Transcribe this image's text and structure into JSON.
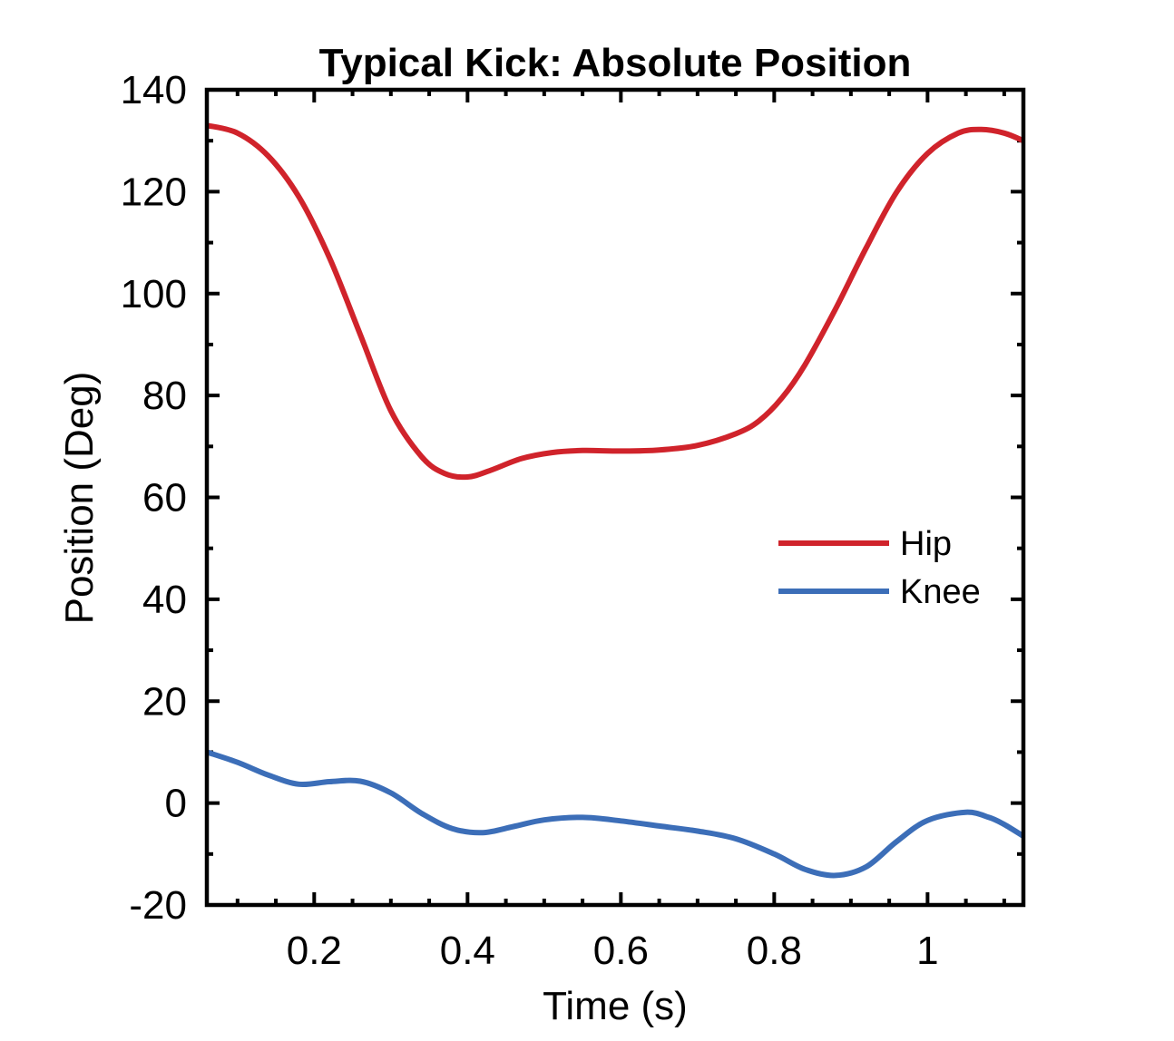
{
  "chart_data": {
    "type": "line",
    "title": "Typical Kick: Absolute Position",
    "xlabel": "Time (s)",
    "ylabel": "Position (Deg)",
    "xlim": [
      0.06,
      1.125
    ],
    "ylim": [
      -20,
      140
    ],
    "xticks": [
      0.2,
      0.4,
      0.6,
      0.8,
      1
    ],
    "xtick_labels": [
      "0.2",
      "0.4",
      "0.6",
      "0.8",
      "1"
    ],
    "yticks": [
      -20,
      0,
      20,
      40,
      60,
      80,
      100,
      120,
      140
    ],
    "ytick_labels": [
      "-20",
      "0",
      "20",
      "40",
      "60",
      "80",
      "100",
      "120",
      "140"
    ],
    "grid": false,
    "legend_position": "center-right",
    "series": [
      {
        "name": "Hip",
        "color": "#d0232b",
        "x": [
          0.06,
          0.1,
          0.14,
          0.18,
          0.22,
          0.26,
          0.3,
          0.34,
          0.37,
          0.4,
          0.43,
          0.47,
          0.51,
          0.55,
          0.6,
          0.65,
          0.7,
          0.75,
          0.78,
          0.81,
          0.84,
          0.88,
          0.92,
          0.96,
          1.0,
          1.04,
          1.07,
          1.1,
          1.125
        ],
        "y": [
          133,
          131.5,
          127,
          119,
          107,
          92,
          77,
          68,
          64.7,
          64,
          65.3,
          67.6,
          68.8,
          69.2,
          69.1,
          69.3,
          70.2,
          72.5,
          75,
          79.5,
          86,
          97,
          109,
          120,
          127.5,
          131.5,
          132.2,
          131.5,
          130
        ]
      },
      {
        "name": "Knee",
        "color": "#3c6eb8",
        "x": [
          0.06,
          0.1,
          0.14,
          0.18,
          0.22,
          0.26,
          0.3,
          0.34,
          0.38,
          0.42,
          0.46,
          0.5,
          0.55,
          0.6,
          0.65,
          0.7,
          0.75,
          0.8,
          0.84,
          0.88,
          0.92,
          0.96,
          1.0,
          1.05,
          1.08,
          1.1,
          1.125
        ],
        "y": [
          10,
          8,
          5.5,
          3.7,
          4.2,
          4.3,
          2,
          -2,
          -5,
          -5.8,
          -4.6,
          -3.3,
          -2.8,
          -3.5,
          -4.5,
          -5.5,
          -7,
          -10,
          -13,
          -14.2,
          -12.5,
          -7.5,
          -3.4,
          -1.8,
          -2.8,
          -4.2,
          -6.5
        ]
      }
    ]
  }
}
